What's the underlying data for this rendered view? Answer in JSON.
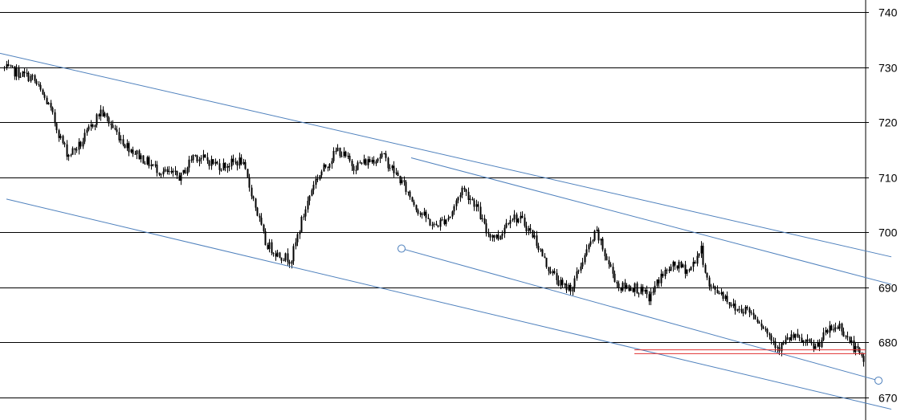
{
  "chart_data": {
    "type": "candlestick",
    "title": "",
    "xlabel": "",
    "ylabel": "",
    "ylim": [
      665,
      742
    ],
    "grid": true,
    "legend": "none",
    "y_ticks": [
      670,
      680,
      690,
      700,
      710,
      720,
      730,
      740
    ],
    "price_path": [
      {
        "x": 0,
        "y": 730
      },
      {
        "x": 40,
        "y": 728
      },
      {
        "x": 60,
        "y": 723
      },
      {
        "x": 75,
        "y": 717
      },
      {
        "x": 84,
        "y": 714
      },
      {
        "x": 100,
        "y": 716
      },
      {
        "x": 112,
        "y": 719
      },
      {
        "x": 125,
        "y": 722
      },
      {
        "x": 140,
        "y": 719
      },
      {
        "x": 155,
        "y": 716
      },
      {
        "x": 180,
        "y": 713
      },
      {
        "x": 200,
        "y": 711
      },
      {
        "x": 225,
        "y": 710
      },
      {
        "x": 240,
        "y": 714
      },
      {
        "x": 258,
        "y": 713
      },
      {
        "x": 275,
        "y": 712
      },
      {
        "x": 300,
        "y": 713
      },
      {
        "x": 315,
        "y": 706
      },
      {
        "x": 330,
        "y": 698
      },
      {
        "x": 345,
        "y": 696
      },
      {
        "x": 362,
        "y": 695
      },
      {
        "x": 375,
        "y": 702
      },
      {
        "x": 390,
        "y": 709
      },
      {
        "x": 405,
        "y": 712
      },
      {
        "x": 420,
        "y": 715
      },
      {
        "x": 440,
        "y": 712
      },
      {
        "x": 460,
        "y": 713
      },
      {
        "x": 475,
        "y": 714
      },
      {
        "x": 500,
        "y": 709
      },
      {
        "x": 520,
        "y": 704
      },
      {
        "x": 540,
        "y": 701
      },
      {
        "x": 560,
        "y": 703
      },
      {
        "x": 575,
        "y": 708
      },
      {
        "x": 592,
        "y": 705
      },
      {
        "x": 605,
        "y": 700
      },
      {
        "x": 620,
        "y": 699
      },
      {
        "x": 635,
        "y": 703
      },
      {
        "x": 650,
        "y": 702
      },
      {
        "x": 665,
        "y": 699
      },
      {
        "x": 680,
        "y": 694
      },
      {
        "x": 700,
        "y": 690
      },
      {
        "x": 712,
        "y": 690
      },
      {
        "x": 725,
        "y": 695
      },
      {
        "x": 742,
        "y": 700
      },
      {
        "x": 755,
        "y": 695
      },
      {
        "x": 770,
        "y": 690
      },
      {
        "x": 790,
        "y": 690
      },
      {
        "x": 808,
        "y": 688
      },
      {
        "x": 822,
        "y": 692
      },
      {
        "x": 840,
        "y": 694
      },
      {
        "x": 858,
        "y": 693
      },
      {
        "x": 872,
        "y": 697
      },
      {
        "x": 882,
        "y": 690
      },
      {
        "x": 898,
        "y": 689
      },
      {
        "x": 915,
        "y": 686
      },
      {
        "x": 930,
        "y": 686
      },
      {
        "x": 945,
        "y": 684
      },
      {
        "x": 958,
        "y": 681
      },
      {
        "x": 970,
        "y": 679
      },
      {
        "x": 985,
        "y": 681
      },
      {
        "x": 1000,
        "y": 680
      },
      {
        "x": 1015,
        "y": 679
      },
      {
        "x": 1030,
        "y": 682
      },
      {
        "x": 1045,
        "y": 683
      },
      {
        "x": 1058,
        "y": 680
      },
      {
        "x": 1068,
        "y": 678
      },
      {
        "x": 1077,
        "y": 676
      }
    ],
    "trendlines": [
      {
        "x1": 0,
        "y1": 732.5,
        "x2": 1110,
        "y2": 695.5
      },
      {
        "x1": 512,
        "y1": 713.5,
        "x2": 1110,
        "y2": 690.5
      },
      {
        "x1": 8,
        "y1": 706,
        "x2": 1110,
        "y2": 667.8
      },
      {
        "x1": 500,
        "y1": 697,
        "x2": 1094,
        "y2": 673
      }
    ],
    "trendline_endpoints": [
      {
        "x": 500,
        "y": 697
      },
      {
        "x": 1094,
        "y": 673
      }
    ],
    "horizontal_lines": [
      {
        "x1": 790,
        "x2": 1078,
        "y": 678.6
      },
      {
        "x1": 790,
        "x2": 1078,
        "y": 677.9
      }
    ],
    "colors": {
      "background": "#ffffff",
      "grid": "#000000",
      "candle": "#000000",
      "trendline": "#4f81bd",
      "level_line": "#e03030"
    }
  }
}
